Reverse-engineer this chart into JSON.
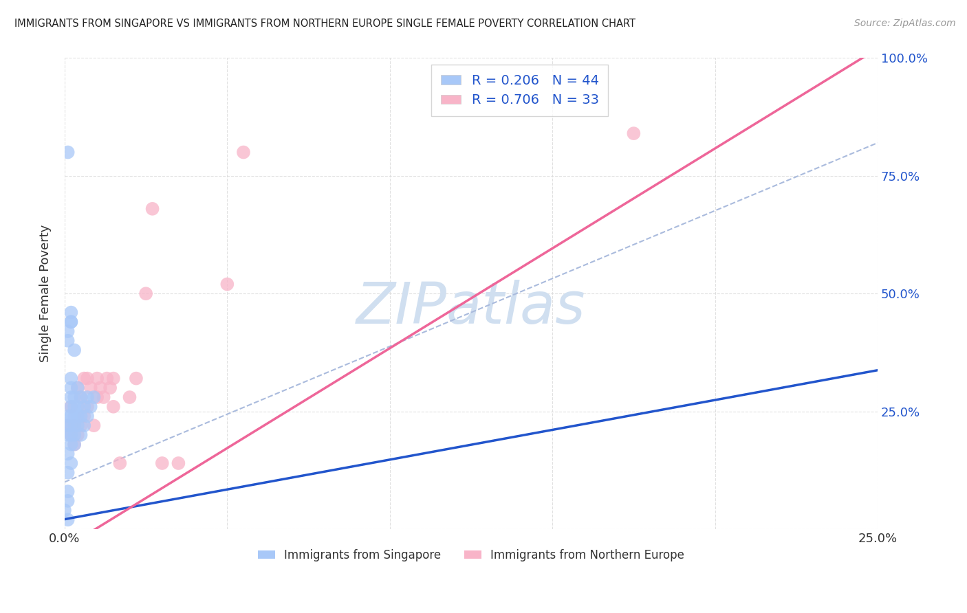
{
  "title": "IMMIGRANTS FROM SINGAPORE VS IMMIGRANTS FROM NORTHERN EUROPE SINGLE FEMALE POVERTY CORRELATION CHART",
  "source": "Source: ZipAtlas.com",
  "ylabel": "Single Female Poverty",
  "x_min": 0.0,
  "x_max": 0.25,
  "y_min": 0.0,
  "y_max": 1.0,
  "singapore_R": 0.206,
  "singapore_N": 44,
  "northern_europe_R": 0.706,
  "northern_europe_N": 33,
  "singapore_color": "#a8c8f8",
  "northern_europe_color": "#f8b4c8",
  "singapore_line_color": "#2255cc",
  "northern_europe_line_color": "#ee6699",
  "dashed_line_color": "#aabbdd",
  "watermark_color": "#d0dff0",
  "background_color": "#ffffff",
  "grid_color": "#dddddd",
  "singapore_scatter": [
    [
      0.001,
      0.02
    ],
    [
      0.001,
      0.06
    ],
    [
      0.001,
      0.08
    ],
    [
      0.001,
      0.12
    ],
    [
      0.001,
      0.16
    ],
    [
      0.001,
      0.2
    ],
    [
      0.001,
      0.22
    ],
    [
      0.001,
      0.24
    ],
    [
      0.002,
      0.14
    ],
    [
      0.002,
      0.18
    ],
    [
      0.002,
      0.2
    ],
    [
      0.002,
      0.22
    ],
    [
      0.002,
      0.24
    ],
    [
      0.002,
      0.26
    ],
    [
      0.002,
      0.28
    ],
    [
      0.002,
      0.3
    ],
    [
      0.002,
      0.32
    ],
    [
      0.003,
      0.18
    ],
    [
      0.003,
      0.2
    ],
    [
      0.003,
      0.22
    ],
    [
      0.003,
      0.24
    ],
    [
      0.003,
      0.26
    ],
    [
      0.003,
      0.28
    ],
    [
      0.004,
      0.22
    ],
    [
      0.004,
      0.24
    ],
    [
      0.004,
      0.26
    ],
    [
      0.004,
      0.3
    ],
    [
      0.005,
      0.2
    ],
    [
      0.005,
      0.24
    ],
    [
      0.005,
      0.28
    ],
    [
      0.006,
      0.22
    ],
    [
      0.006,
      0.26
    ],
    [
      0.007,
      0.24
    ],
    [
      0.007,
      0.28
    ],
    [
      0.008,
      0.26
    ],
    [
      0.009,
      0.28
    ],
    [
      0.001,
      0.4
    ],
    [
      0.001,
      0.42
    ],
    [
      0.002,
      0.44
    ],
    [
      0.002,
      0.46
    ],
    [
      0.003,
      0.38
    ],
    [
      0.0,
      0.04
    ],
    [
      0.001,
      0.8
    ],
    [
      0.002,
      0.44
    ]
  ],
  "northern_europe_scatter": [
    [
      0.001,
      0.22
    ],
    [
      0.002,
      0.2
    ],
    [
      0.002,
      0.26
    ],
    [
      0.003,
      0.18
    ],
    [
      0.003,
      0.22
    ],
    [
      0.004,
      0.2
    ],
    [
      0.004,
      0.3
    ],
    [
      0.005,
      0.22
    ],
    [
      0.005,
      0.28
    ],
    [
      0.006,
      0.24
    ],
    [
      0.006,
      0.32
    ],
    [
      0.007,
      0.26
    ],
    [
      0.007,
      0.32
    ],
    [
      0.008,
      0.3
    ],
    [
      0.009,
      0.22
    ],
    [
      0.01,
      0.28
    ],
    [
      0.01,
      0.32
    ],
    [
      0.011,
      0.3
    ],
    [
      0.012,
      0.28
    ],
    [
      0.013,
      0.32
    ],
    [
      0.014,
      0.3
    ],
    [
      0.015,
      0.26
    ],
    [
      0.015,
      0.32
    ],
    [
      0.017,
      0.14
    ],
    [
      0.02,
      0.28
    ],
    [
      0.022,
      0.32
    ],
    [
      0.025,
      0.5
    ],
    [
      0.03,
      0.14
    ],
    [
      0.035,
      0.14
    ],
    [
      0.05,
      0.52
    ],
    [
      0.055,
      0.8
    ],
    [
      0.175,
      0.84
    ],
    [
      0.027,
      0.68
    ]
  ],
  "singapore_line": [
    0.0,
    0.021,
    0.26,
    0.35
  ],
  "northern_europe_line": [
    0.0,
    -0.04,
    0.25,
    1.02
  ],
  "dashed_line": [
    0.0,
    0.1,
    0.25,
    0.82
  ]
}
